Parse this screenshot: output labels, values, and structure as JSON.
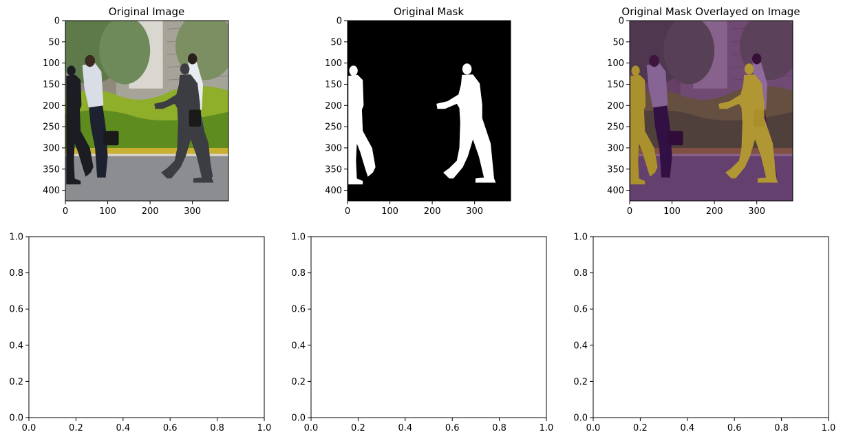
{
  "chart_data": [
    {
      "type": "image",
      "title": "Original Image",
      "content": "photo",
      "xlim": [
        0,
        385
      ],
      "ylim": [
        425,
        0
      ],
      "xticks": [
        0,
        100,
        200,
        300
      ],
      "yticks": [
        0,
        50,
        100,
        150,
        200,
        250,
        300,
        350,
        400
      ],
      "xlabel": "",
      "ylabel": ""
    },
    {
      "type": "image",
      "title": "Original Mask",
      "content": "mask",
      "xlim": [
        0,
        385
      ],
      "ylim": [
        425,
        0
      ],
      "xticks": [
        0,
        100,
        200,
        300
      ],
      "yticks": [
        0,
        50,
        100,
        150,
        200,
        250,
        300,
        350,
        400
      ],
      "xlabel": "",
      "ylabel": ""
    },
    {
      "type": "image",
      "title": "Original Mask Overlayed on Image",
      "content": "overlay",
      "xlim": [
        0,
        385
      ],
      "ylim": [
        425,
        0
      ],
      "xticks": [
        0,
        100,
        200,
        300
      ],
      "yticks": [
        0,
        50,
        100,
        150,
        200,
        250,
        300,
        350,
        400
      ],
      "xlabel": "",
      "ylabel": ""
    },
    {
      "type": "empty",
      "title": "",
      "xlim": [
        0,
        1
      ],
      "ylim": [
        0,
        1
      ],
      "xticks": [
        0.0,
        0.2,
        0.4,
        0.6,
        0.8,
        1.0
      ],
      "yticks": [
        0.0,
        0.2,
        0.4,
        0.6,
        0.8,
        1.0
      ],
      "xlabel": "",
      "ylabel": ""
    },
    {
      "type": "empty",
      "title": "",
      "xlim": [
        0,
        1
      ],
      "ylim": [
        0,
        1
      ],
      "xticks": [
        0.0,
        0.2,
        0.4,
        0.6,
        0.8,
        1.0
      ],
      "yticks": [
        0.0,
        0.2,
        0.4,
        0.6,
        0.8,
        1.0
      ],
      "xlabel": "",
      "ylabel": ""
    },
    {
      "type": "empty",
      "title": "",
      "xlim": [
        0,
        1
      ],
      "ylim": [
        0,
        1
      ],
      "xticks": [
        0.0,
        0.2,
        0.4,
        0.6,
        0.8,
        1.0
      ],
      "yticks": [
        0.0,
        0.2,
        0.4,
        0.6,
        0.8,
        1.0
      ],
      "xlabel": "",
      "ylabel": ""
    }
  ],
  "colors": {
    "mask_foreground": "#ffffff",
    "mask_background": "#000000",
    "overlay_tint": "#440154",
    "overlay_mask": "#fde725"
  }
}
